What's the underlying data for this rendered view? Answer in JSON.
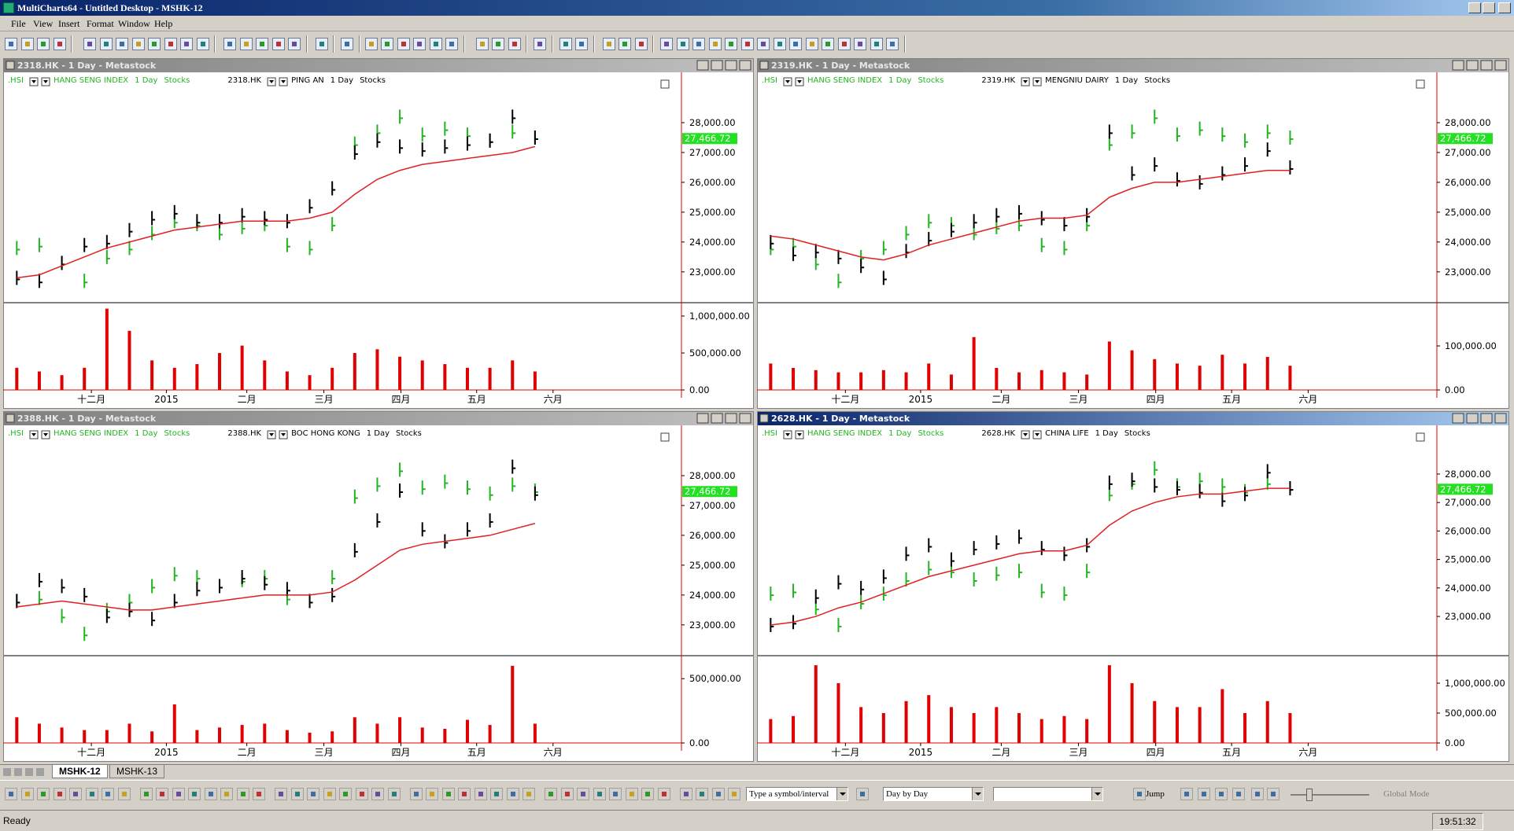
{
  "window": {
    "title": "MultiCharts64 - Untitled Desktop - MSHK-12"
  },
  "menu": [
    "File",
    "View",
    "Insert",
    "Format",
    "Window",
    "Help"
  ],
  "colors": {
    "price": "#000000",
    "overlay": "#22b422",
    "ma": "#e02020",
    "volume": "#e00000",
    "last": "#22e022"
  },
  "month_labels": [
    "十二月",
    "2015",
    "二月",
    "三月",
    "四月",
    "五月",
    "六月"
  ],
  "active_pane": 3,
  "panes": [
    {
      "title": "2318.HK - 1 Day - Metastock",
      "overlay_symbol": ".HSI",
      "overlay_desc": "HANG SENG INDEX",
      "symbol": "2318.HK",
      "desc": "PING AN",
      "interval": "1 Day",
      "category": "Stocks",
      "ylim": [
        22100,
        29580
      ],
      "yticks": [
        {
          "value": 23000,
          "label": "23,000.00"
        },
        {
          "value": 24000,
          "label": "24,000.00"
        },
        {
          "value": 25000,
          "label": "25,000.00"
        },
        {
          "value": 26000,
          "label": "26,000.00"
        },
        {
          "value": 27000,
          "label": "27,000.00"
        },
        {
          "value": 28000,
          "label": "28,000.00"
        }
      ],
      "last": {
        "value": 27466.72,
        "label": "27,466.72"
      },
      "price": [
        22800,
        22700,
        23300,
        23900,
        24000,
        24400,
        24800,
        25000,
        24700,
        24700,
        24900,
        24800,
        24700,
        25200,
        25800,
        27000,
        27400,
        27200,
        27100,
        27200,
        27300,
        27400,
        28200,
        27500
      ],
      "overlay": [
        23800,
        23900,
        23300,
        22700,
        23500,
        23800,
        24300,
        24700,
        24600,
        24300,
        24500,
        24600,
        23900,
        23800,
        24600,
        27300,
        27700,
        28200,
        27600,
        27800,
        27600,
        27400,
        27700,
        27500
      ],
      "ma": [
        22800,
        22900,
        23200,
        23500,
        23800,
        24000,
        24200,
        24400,
        24500,
        24600,
        24700,
        24700,
        24700,
        24800,
        25000,
        25600,
        26100,
        26400,
        26600,
        26700,
        26800,
        26900,
        27000,
        27200
      ],
      "vol_ylim": [
        0,
        1117000
      ],
      "vol_yticks": [
        {
          "value": 0,
          "label": "0.00"
        },
        {
          "value": 500000,
          "label": "500,000.00"
        },
        {
          "value": 1000000,
          "label": "1,000,000.00"
        }
      ],
      "volume": [
        300000,
        250000,
        200000,
        300000,
        1100000,
        800000,
        400000,
        300000,
        350000,
        500000,
        600000,
        400000,
        250000,
        200000,
        300000,
        500000,
        550000,
        450000,
        400000,
        350000,
        300000,
        300000,
        400000,
        250000
      ]
    },
    {
      "title": "2319.HK - 1 Day - Metastock",
      "overlay_symbol": ".HSI",
      "overlay_desc": "HANG SENG INDEX",
      "symbol": "2319.HK",
      "desc": "MENGNIU DAIRY",
      "interval": "1 Day",
      "category": "Stocks",
      "ylim": [
        22100,
        29580
      ],
      "yticks": [
        {
          "value": 23000,
          "label": "23,000.00"
        },
        {
          "value": 24000,
          "label": "24,000.00"
        },
        {
          "value": 25000,
          "label": "25,000.00"
        },
        {
          "value": 26000,
          "label": "26,000.00"
        },
        {
          "value": 27000,
          "label": "27,000.00"
        },
        {
          "value": 28000,
          "label": "28,000.00"
        }
      ],
      "last": {
        "value": 27466.72,
        "label": "27,466.72"
      },
      "price": [
        24000,
        23600,
        23700,
        23500,
        23200,
        22800,
        23700,
        24100,
        24400,
        24700,
        24900,
        25000,
        24800,
        24600,
        24900,
        27700,
        26300,
        26600,
        26100,
        26000,
        26300,
        26600,
        27100,
        26500
      ],
      "overlay": [
        23800,
        23900,
        23300,
        22700,
        23500,
        23800,
        24300,
        24700,
        24600,
        24300,
        24500,
        24600,
        23900,
        23800,
        24600,
        27300,
        27700,
        28200,
        27600,
        27800,
        27600,
        27400,
        27700,
        27500
      ],
      "ma": [
        24200,
        24100,
        23900,
        23700,
        23500,
        23400,
        23600,
        23900,
        24100,
        24300,
        24500,
        24700,
        24800,
        24800,
        24900,
        25500,
        25800,
        26000,
        26000,
        26100,
        26200,
        26300,
        26400,
        26400
      ],
      "vol_ylim": [
        0,
        187500
      ],
      "vol_yticks": [
        {
          "value": 0,
          "label": "0.00"
        },
        {
          "value": 100000,
          "label": "100,000.00"
        }
      ],
      "volume": [
        60000,
        50000,
        45000,
        40000,
        40000,
        45000,
        40000,
        60000,
        35000,
        120000,
        50000,
        40000,
        45000,
        40000,
        35000,
        110000,
        90000,
        70000,
        60000,
        55000,
        80000,
        60000,
        75000,
        55000
      ]
    },
    {
      "title": "2388.HK - 1 Day - Metastock",
      "overlay_symbol": ".HSI",
      "overlay_desc": "HANG SENG INDEX",
      "symbol": "2388.HK",
      "desc": "BOC HONG KONG",
      "interval": "1 Day",
      "category": "Stocks",
      "ylim": [
        22100,
        29580
      ],
      "yticks": [
        {
          "value": 23000,
          "label": "23,000.00"
        },
        {
          "value": 24000,
          "label": "24,000.00"
        },
        {
          "value": 25000,
          "label": "25,000.00"
        },
        {
          "value": 26000,
          "label": "26,000.00"
        },
        {
          "value": 27000,
          "label": "27,000.00"
        },
        {
          "value": 28000,
          "label": "28,000.00"
        }
      ],
      "last": {
        "value": 27466.72,
        "label": "27,466.72"
      },
      "price": [
        23800,
        24500,
        24300,
        24000,
        23300,
        23500,
        23200,
        23800,
        24200,
        24300,
        24600,
        24400,
        24200,
        23800,
        24000,
        25500,
        26500,
        27500,
        26200,
        25800,
        26200,
        26500,
        28300,
        27400
      ],
      "overlay": [
        23800,
        23900,
        23300,
        22700,
        23500,
        23800,
        24300,
        24700,
        24600,
        24300,
        24500,
        24600,
        23900,
        23800,
        24600,
        27300,
        27700,
        28200,
        27600,
        27800,
        27600,
        27400,
        27700,
        27500
      ],
      "ma": [
        23600,
        23700,
        23800,
        23700,
        23600,
        23500,
        23500,
        23600,
        23700,
        23800,
        23900,
        24000,
        24000,
        24000,
        24100,
        24500,
        25000,
        25500,
        25700,
        25800,
        25900,
        26000,
        26200,
        26400
      ],
      "vol_ylim": [
        0,
        642000
      ],
      "vol_yticks": [
        {
          "value": 0,
          "label": "0.00"
        },
        {
          "value": 500000,
          "label": "500,000.00"
        }
      ],
      "volume": [
        200000,
        150000,
        120000,
        100000,
        100000,
        150000,
        90000,
        300000,
        100000,
        120000,
        140000,
        150000,
        100000,
        80000,
        90000,
        200000,
        150000,
        200000,
        120000,
        110000,
        180000,
        140000,
        600000,
        150000
      ]
    },
    {
      "title": "2628.HK - 1 Day - Metastock",
      "overlay_symbol": ".HSI",
      "overlay_desc": "HANG SENG INDEX",
      "symbol": "2628.HK",
      "desc": "CHINA LIFE",
      "interval": "1 Day",
      "category": "Stocks",
      "ylim": [
        21760,
        29600
      ],
      "yticks": [
        {
          "value": 23000,
          "label": "23,000.00"
        },
        {
          "value": 24000,
          "label": "24,000.00"
        },
        {
          "value": 25000,
          "label": "25,000.00"
        },
        {
          "value": 26000,
          "label": "26,000.00"
        },
        {
          "value": 27000,
          "label": "27,000.00"
        },
        {
          "value": 28000,
          "label": "28,000.00"
        }
      ],
      "last": {
        "value": 27466.72,
        "label": "27,466.72"
      },
      "price": [
        22700,
        22800,
        23700,
        24200,
        24000,
        24400,
        25200,
        25500,
        25000,
        25400,
        25600,
        25800,
        25400,
        25200,
        25500,
        27700,
        27800,
        27600,
        27500,
        27400,
        27100,
        27300,
        28100,
        27500
      ],
      "overlay": [
        23800,
        23900,
        23300,
        22700,
        23500,
        23800,
        24300,
        24700,
        24600,
        24300,
        24500,
        24600,
        23900,
        23800,
        24600,
        27300,
        27700,
        28200,
        27600,
        27800,
        27600,
        27400,
        27700,
        27500
      ],
      "ma": [
        22700,
        22800,
        23000,
        23300,
        23500,
        23800,
        24100,
        24400,
        24600,
        24800,
        25000,
        25200,
        25300,
        25300,
        25500,
        26200,
        26700,
        27000,
        27200,
        27300,
        27300,
        27400,
        27500,
        27500
      ],
      "vol_ylim": [
        0,
        1381000
      ],
      "vol_yticks": [
        {
          "value": 0,
          "label": "0.00"
        },
        {
          "value": 500000,
          "label": "500,000.00"
        },
        {
          "value": 1000000,
          "label": "1,000,000.00"
        }
      ],
      "volume": [
        400000,
        450000,
        1300000,
        1000000,
        600000,
        500000,
        700000,
        800000,
        600000,
        500000,
        600000,
        500000,
        400000,
        450000,
        400000,
        1300000,
        1000000,
        700000,
        600000,
        600000,
        900000,
        500000,
        700000,
        500000
      ]
    }
  ],
  "tabs": [
    "MSHK-12",
    "MSHK-13"
  ],
  "active_tab": 0,
  "symbol_box": "Type a symbol/interval",
  "playback_mode": "Day by Day",
  "jump": "Jump",
  "global_mode": "Global Mode",
  "status": "Ready",
  "clock": "19:51:32"
}
